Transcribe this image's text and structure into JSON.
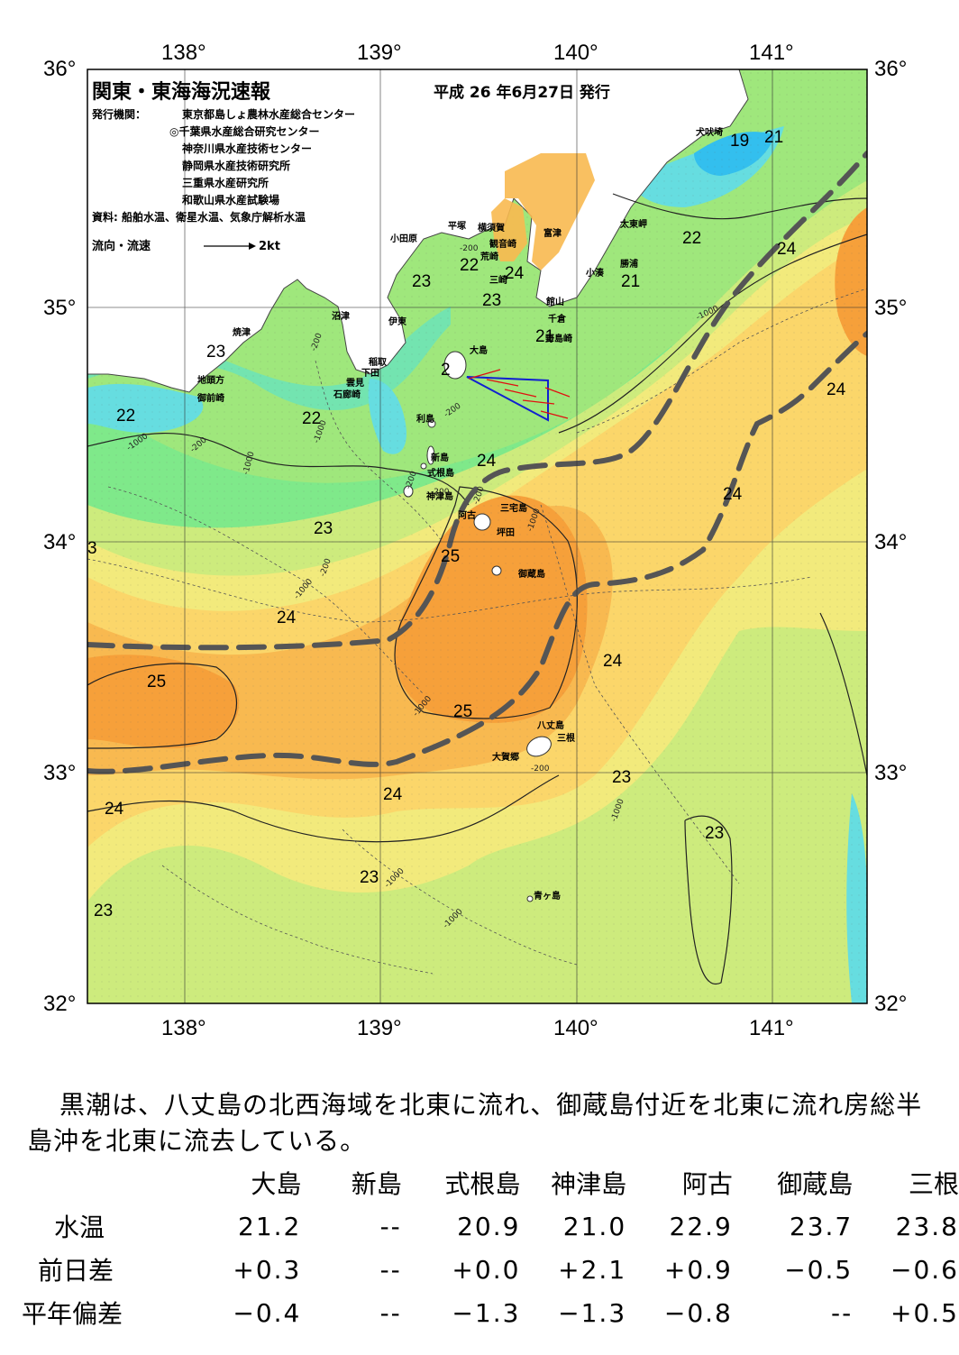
{
  "title": "関東・東海海況速報",
  "issue_date": "平成 26 年6月27日 発行",
  "publisher_label": "発行機関：",
  "publishers": [
    "東京都島しょ農林水産総合センター",
    "◎千葉県水産総合研究センター",
    "神奈川県水産技術センター",
    "静岡県水産技術研究所",
    "三重県水産研究所",
    "和歌山県水産試験場"
  ],
  "source": "資料: 船舶水温、衛星水温、気象庁解析水温",
  "flow_legend": {
    "label": "流向・流速",
    "speed": "2kt"
  },
  "axes": {
    "lon_labels": [
      "138°",
      "139°",
      "140°",
      "141°"
    ],
    "lat_labels": [
      "36°",
      "35°",
      "34°",
      "33°",
      "32°"
    ],
    "lon_range": [
      137.5,
      141.5
    ],
    "lat_range": [
      32,
      36
    ]
  },
  "colors": {
    "ocean_17": "#33bfee",
    "ocean_19": "#66dde0",
    "ocean_20": "#73e4b0",
    "ocean_21": "#7fe98a",
    "ocean_22": "#9fe77c",
    "ocean_23": "#cdeb7d",
    "ocean_23b": "#f2ea7c",
    "ocean_24": "#fbd66a",
    "ocean_24b": "#f8b950",
    "ocean_25": "#f6a03a",
    "land": "#ffffff",
    "kuroshio_axis": "#555555",
    "vector": "#e01010",
    "section": "#1020d0"
  },
  "place_labels": [
    "小田原",
    "平塚",
    "横須賀",
    "観音崎",
    "荒崎",
    "三崎",
    "富津",
    "太東岬",
    "勝浦",
    "小湊",
    "館山",
    "千倉",
    "野島崎",
    "犬吠埼",
    "沼津",
    "伊東",
    "焼津",
    "稲取",
    "下田",
    "雲見",
    "石廊崎",
    "地頭方",
    "御前崎",
    "大島",
    "利島",
    "新島",
    "式根島",
    "神津島",
    "三宅島",
    "阿古",
    "坪田",
    "御蔵島",
    "八丈島",
    "三根",
    "大賀郷",
    "青ヶ島"
  ],
  "temp_labels": [
    "19",
    "21",
    "22",
    "24",
    "23",
    "22",
    "24",
    "23",
    "21",
    "21",
    "23",
    "22",
    "22",
    "2",
    "24",
    "24",
    "24",
    "23",
    "3",
    "25",
    "24",
    "24",
    "25",
    "25",
    "23",
    "24",
    "24",
    "23",
    "23",
    "23"
  ],
  "depth_labels": [
    "-200",
    "-200",
    "-1000",
    "-200",
    "-1000",
    "-1000",
    "-200",
    "-1000",
    "-200",
    "-200",
    "-200",
    "-1000",
    "-200",
    "-1000",
    "-1000",
    "-1000",
    "-1000",
    "-200",
    "-1000"
  ],
  "description": "黒潮は、八丈島の北西海域を北東に流れ、御蔵島付近を北東に流れ房総半島沖を北東に流去している。",
  "table": {
    "columns": [
      "大島",
      "新島",
      "式根島",
      "神津島",
      "阿古",
      "御蔵島",
      "三根"
    ],
    "rows": [
      {
        "label": "水温",
        "values": [
          "21.2",
          "--",
          "20.9",
          "21.0",
          "22.9",
          "23.7",
          "23.8"
        ]
      },
      {
        "label": "前日差",
        "values": [
          "+0.3",
          "--",
          "+0.0",
          "+2.1",
          "+0.9",
          "−0.5",
          "−0.6"
        ]
      },
      {
        "label": "平年偏差",
        "values": [
          "−0.4",
          "--",
          "−1.3",
          "−1.3",
          "−0.8",
          "--",
          "+0.5"
        ]
      }
    ]
  }
}
